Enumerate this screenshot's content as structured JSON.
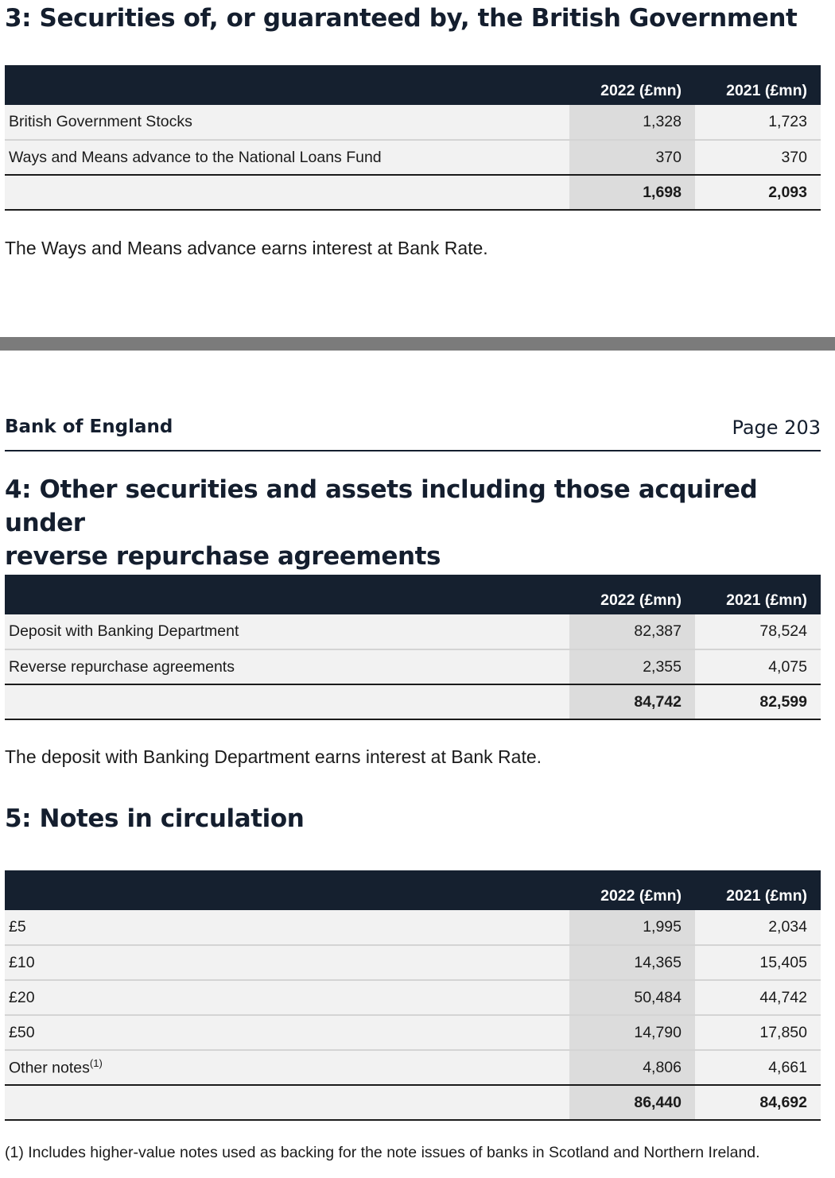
{
  "section3": {
    "title": "3: Securities of, or guaranteed by, the British Government",
    "columns": [
      "2022 (£mn)",
      "2021 (£mn)"
    ],
    "rows": [
      {
        "label": "British Government Stocks",
        "y2022": "1,328",
        "y2021": "1,723"
      },
      {
        "label": "Ways and Means advance to the National Loans Fund",
        "y2022": "370",
        "y2021": "370"
      }
    ],
    "total": {
      "label": "",
      "y2022": "1,698",
      "y2021": "2,093"
    },
    "note": "The Ways and Means advance earns interest at Bank Rate."
  },
  "page_header": {
    "organisation": "Bank of England",
    "page": "Page 203"
  },
  "section4": {
    "title_line1": "4: Other securities and assets including those acquired under",
    "title_line2": "reverse repurchase agreements",
    "columns": [
      "2022 (£mn)",
      "2021 (£mn)"
    ],
    "rows": [
      {
        "label": "Deposit with Banking Department",
        "y2022": "82,387",
        "y2021": "78,524"
      },
      {
        "label": "Reverse repurchase agreements",
        "y2022": "2,355",
        "y2021": "4,075"
      }
    ],
    "total": {
      "label": "",
      "y2022": "84,742",
      "y2021": "82,599"
    },
    "note": "The deposit with Banking Department earns interest at Bank Rate."
  },
  "section5": {
    "title": "5: Notes in circulation",
    "columns": [
      "2022 (£mn)",
      "2021 (£mn)"
    ],
    "rows": [
      {
        "label": "£5",
        "y2022": "1,995",
        "y2021": "2,034"
      },
      {
        "label": "£10",
        "y2022": "14,365",
        "y2021": "15,405"
      },
      {
        "label": "£20",
        "y2022": "50,484",
        "y2021": "44,742"
      },
      {
        "label": "£50",
        "y2022": "14,790",
        "y2021": "17,850"
      },
      {
        "label": "Other notes",
        "footnote_ref": "(1)",
        "y2022": "4,806",
        "y2021": "4,661"
      }
    ],
    "total": {
      "label": "",
      "y2022": "86,440",
      "y2021": "84,692"
    },
    "footnote": "(1) Includes higher-value notes used as backing for the note issues of banks in Scotland and Northern Ireland."
  }
}
